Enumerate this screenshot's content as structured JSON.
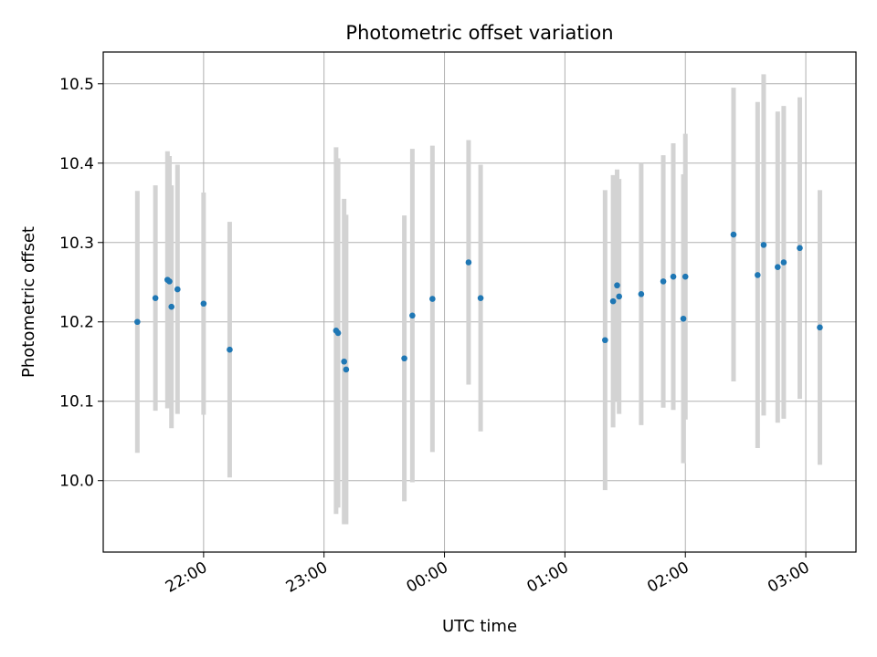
{
  "chart_data": {
    "type": "scatter",
    "title": "Photometric offset variation",
    "xlabel": "UTC time",
    "ylabel": "Photometric offset",
    "x_ticks": [
      "22:00",
      "23:00",
      "00:00",
      "01:00",
      "02:00",
      "03:00"
    ],
    "y_ticks": [
      "10.0",
      "10.1",
      "10.2",
      "10.3",
      "10.4",
      "10.5"
    ],
    "y_tick_values": [
      10.0,
      10.1,
      10.2,
      10.3,
      10.4,
      10.5
    ],
    "xlim": [
      "21:10",
      "03:25"
    ],
    "ylim": [
      9.91,
      10.54
    ],
    "grid": true,
    "colors": {
      "points": "#1f77b4",
      "errorbars": "#d3d3d3",
      "grid": "#b0b0b0"
    },
    "points": [
      {
        "t": "21:27",
        "y": 10.2,
        "err": 0.165
      },
      {
        "t": "21:36",
        "y": 10.23,
        "err": 0.142
      },
      {
        "t": "21:42",
        "y": 10.253,
        "err": 0.162
      },
      {
        "t": "21:43",
        "y": 10.251,
        "err": 0.158
      },
      {
        "t": "21:44",
        "y": 10.219,
        "err": 0.153
      },
      {
        "t": "21:47",
        "y": 10.241,
        "err": 0.157
      },
      {
        "t": "22:00",
        "y": 10.223,
        "err": 0.14
      },
      {
        "t": "22:13",
        "y": 10.165,
        "err": 0.161
      },
      {
        "t": "23:06",
        "y": 10.189,
        "err": 0.231
      },
      {
        "t": "23:07",
        "y": 10.186,
        "err": 0.22
      },
      {
        "t": "23:10",
        "y": 10.15,
        "err": 0.205
      },
      {
        "t": "23:11",
        "y": 10.14,
        "err": 0.195
      },
      {
        "t": "23:40",
        "y": 10.154,
        "err": 0.18
      },
      {
        "t": "23:44",
        "y": 10.208,
        "err": 0.21
      },
      {
        "t": "23:54",
        "y": 10.229,
        "err": 0.193
      },
      {
        "t": "00:12",
        "y": 10.275,
        "err": 0.154
      },
      {
        "t": "00:18",
        "y": 10.23,
        "err": 0.168
      },
      {
        "t": "01:20",
        "y": 10.177,
        "err": 0.189
      },
      {
        "t": "01:24",
        "y": 10.226,
        "err": 0.159
      },
      {
        "t": "01:26",
        "y": 10.246,
        "err": 0.146
      },
      {
        "t": "01:27",
        "y": 10.232,
        "err": 0.148
      },
      {
        "t": "01:38",
        "y": 10.235,
        "err": 0.165
      },
      {
        "t": "01:49",
        "y": 10.251,
        "err": 0.159
      },
      {
        "t": "01:54",
        "y": 10.257,
        "err": 0.168
      },
      {
        "t": "01:59",
        "y": 10.204,
        "err": 0.182
      },
      {
        "t": "02:00",
        "y": 10.257,
        "err": 0.18
      },
      {
        "t": "02:24",
        "y": 10.31,
        "err": 0.185
      },
      {
        "t": "02:36",
        "y": 10.259,
        "err": 0.218
      },
      {
        "t": "02:39",
        "y": 10.297,
        "err": 0.215
      },
      {
        "t": "02:46",
        "y": 10.269,
        "err": 0.196
      },
      {
        "t": "02:49",
        "y": 10.275,
        "err": 0.197
      },
      {
        "t": "02:57",
        "y": 10.293,
        "err": 0.19
      },
      {
        "t": "03:07",
        "y": 10.193,
        "err": 0.173
      }
    ]
  }
}
